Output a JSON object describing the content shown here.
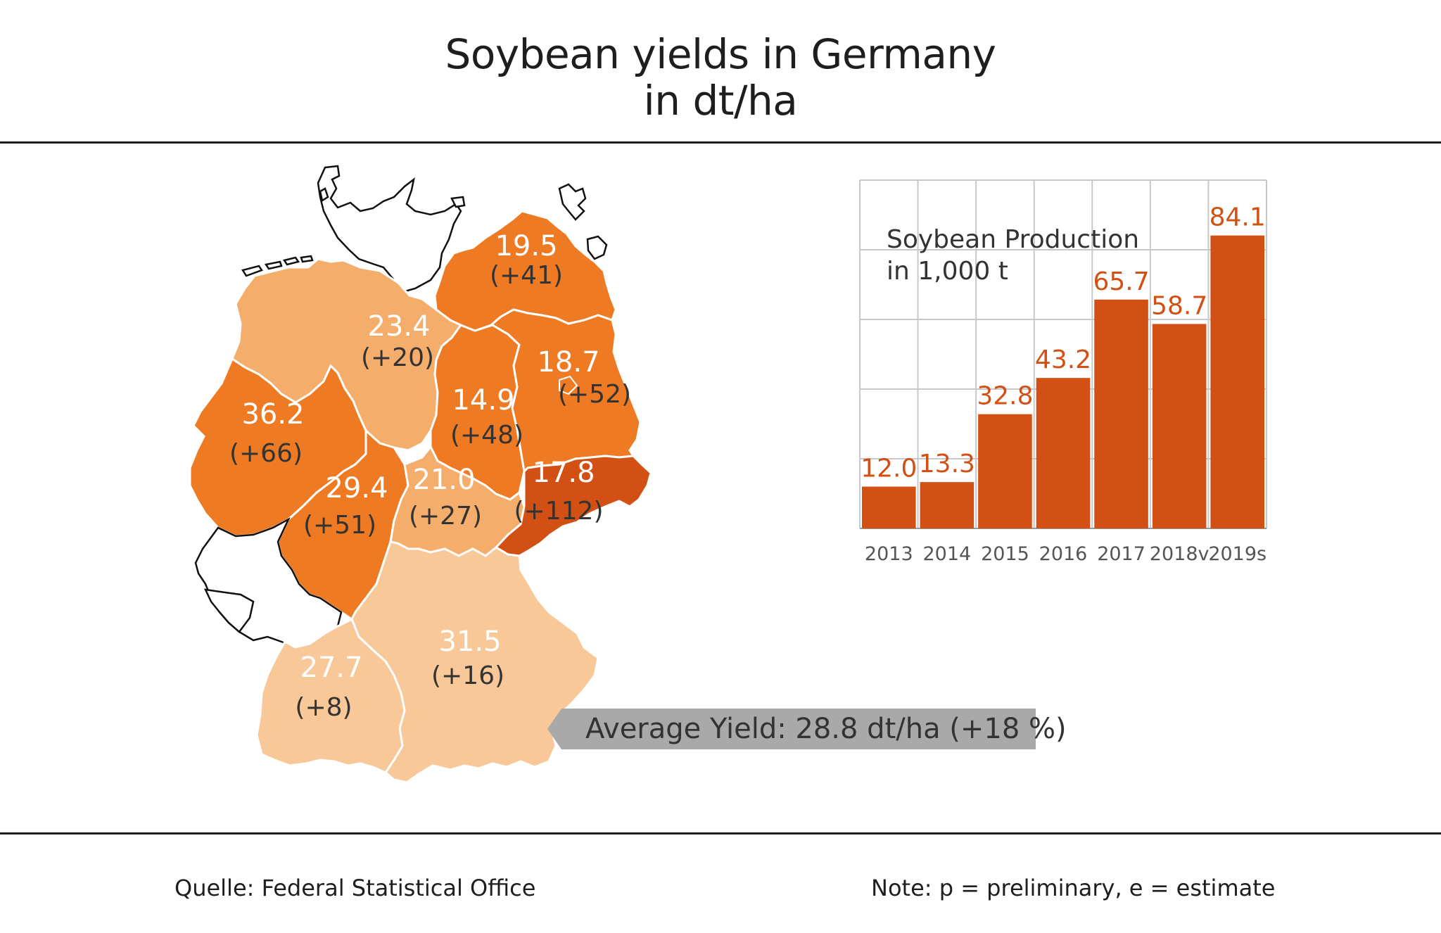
{
  "header": {
    "title_line1": "Soybean yields in Germany",
    "title_line2": "in dt/ha"
  },
  "map": {
    "colors": {
      "dark": "#d35014",
      "orange": "#ee7b24",
      "light": "#f4ad6b",
      "pale": "#f8c899",
      "white": "#ffffff",
      "outline": "#111111"
    },
    "regions": [
      {
        "id": "mecklenburg-vorpommern",
        "yield": "19.5",
        "change": "(+41)",
        "color": "orange"
      },
      {
        "id": "niedersachsen",
        "yield": "23.4",
        "change": "(+20)",
        "color": "light"
      },
      {
        "id": "brandenburg",
        "yield": "18.7",
        "change": "(+52)",
        "color": "orange"
      },
      {
        "id": "sachsen-anhalt",
        "yield": "14.9",
        "change": "(+48)",
        "color": "orange"
      },
      {
        "id": "nordrhein-westfalen",
        "yield": "36.2",
        "change": "(+66)",
        "color": "orange"
      },
      {
        "id": "hessen",
        "yield": "29.4",
        "change": "(+51)",
        "color": "orange"
      },
      {
        "id": "thueringen",
        "yield": "21.0",
        "change": "(+27)",
        "color": "light"
      },
      {
        "id": "sachsen",
        "yield": "17.8",
        "change": "(+112)",
        "color": "dark"
      },
      {
        "id": "baden-wuerttemberg",
        "yield": "27.7",
        "change": "(+8)",
        "color": "pale"
      },
      {
        "id": "bayern",
        "yield": "31.5",
        "change": "(+16)",
        "color": "pale"
      }
    ],
    "average_label": "Average Yield: 28.8 dt/ha (+18 %)",
    "average_box_color": "#a9a9a9"
  },
  "chart_data": {
    "type": "bar",
    "title": "Soybean Production in 1,000 t",
    "title_line1": "Soybean Production",
    "title_line2": "in 1,000 t",
    "categories": [
      "2013",
      "2014",
      "2015",
      "2016",
      "2017",
      "2018v",
      "2019s"
    ],
    "values": [
      12.0,
      13.3,
      32.8,
      43.2,
      65.7,
      58.7,
      84.1
    ],
    "value_labels": [
      "12.0",
      "13.3",
      "32.8",
      "43.2",
      "65.7",
      "58.7",
      "84.1"
    ],
    "ylim": [
      0,
      100
    ],
    "grid": true,
    "bar_color": "#d35014",
    "label_color": "#d35014",
    "grid_color": "#c8c8c8"
  },
  "footer": {
    "source": "Quelle: Federal Statistical Office",
    "note": "Note: p = preliminary, e = estimate"
  }
}
